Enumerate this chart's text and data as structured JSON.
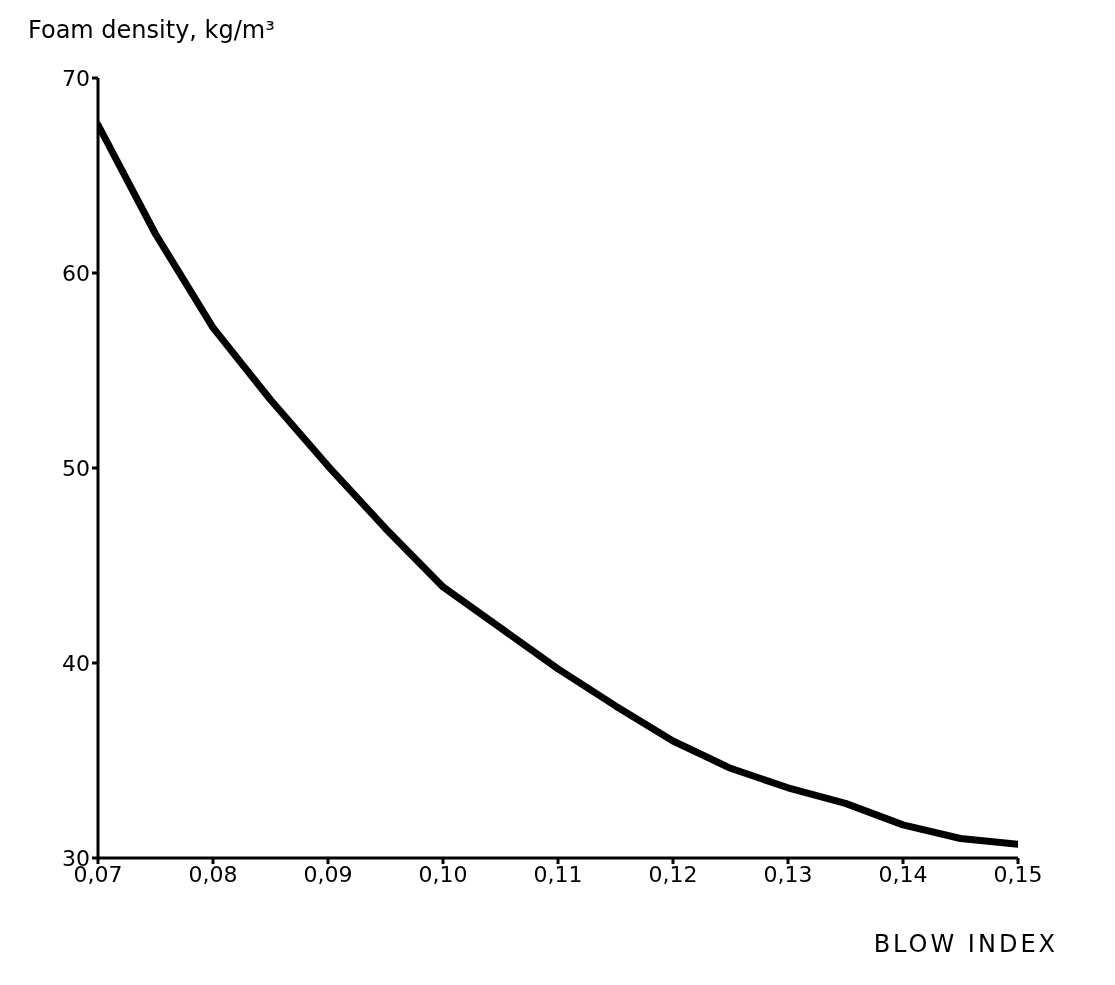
{
  "chart_data": {
    "type": "line",
    "ylabel": "Foam density, kg/m³",
    "xlabel": "BLOW INDEX",
    "x": [
      0.07,
      0.075,
      0.08,
      0.085,
      0.09,
      0.095,
      0.1,
      0.105,
      0.11,
      0.115,
      0.12,
      0.125,
      0.13,
      0.135,
      0.14,
      0.145,
      0.15
    ],
    "series": [
      {
        "color": "#000000",
        "values": [
          67.6,
          62,
          57.2,
          53.5,
          50.1,
          46.9,
          43.9,
          41.8,
          39.7,
          37.8,
          36,
          34.6,
          33.6,
          32.8,
          31.7,
          31,
          30.7
        ]
      }
    ],
    "xlim": [
      0.07,
      0.15
    ],
    "xticks": [
      {
        "value": 0.07,
        "label": "0,07"
      },
      {
        "value": 0.08,
        "label": "0,08"
      },
      {
        "value": 0.09,
        "label": "0,09"
      },
      {
        "value": 0.1,
        "label": "0,10"
      },
      {
        "value": 0.11,
        "label": "0,11"
      },
      {
        "value": 0.12,
        "label": "0,12"
      },
      {
        "value": 0.13,
        "label": "0,13"
      },
      {
        "value": 0.14,
        "label": "0,14"
      },
      {
        "value": 0.15,
        "label": "0,15"
      }
    ],
    "ylim": [
      30,
      70
    ],
    "yticks": [
      30,
      40,
      50,
      60,
      70
    ],
    "grid": false,
    "legend": false,
    "marker": "none",
    "line_style": "solid"
  }
}
